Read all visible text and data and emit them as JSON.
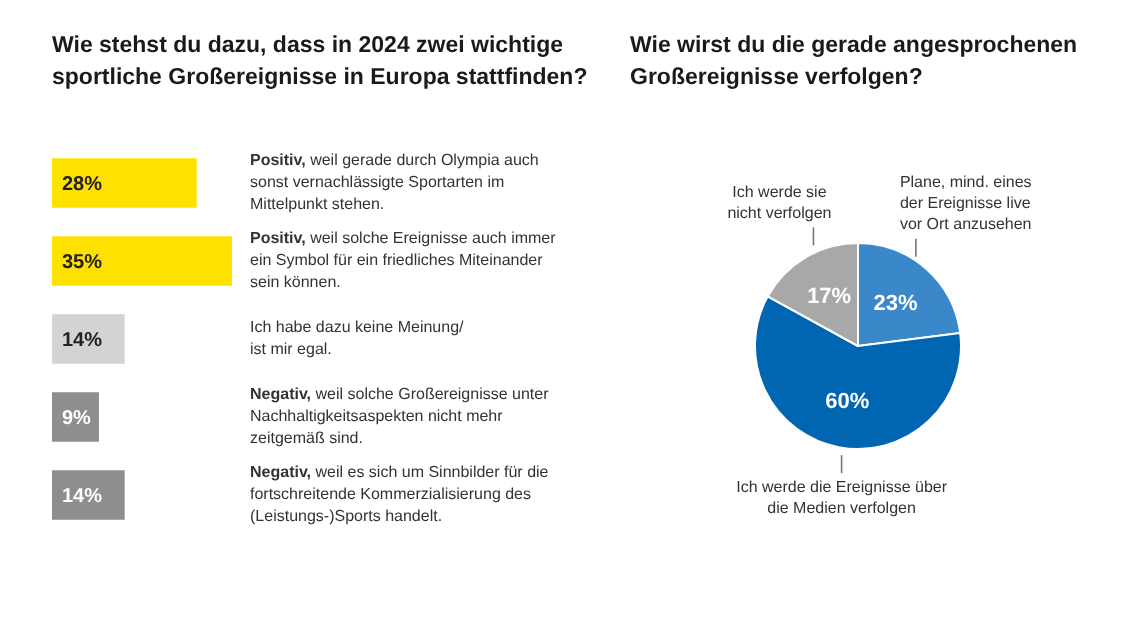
{
  "chart_data": [
    {
      "type": "bar",
      "orientation": "horizontal",
      "title": "Wie stehst du dazu, dass in 2024 zwei wichtige sportliche Großereignisse in Europa stattfinden?",
      "categories": [
        "Positiv, weil gerade durch Olympia auch\nsonst vernachlässigte Sportarten im\nMittelpunkt stehen.",
        "Positiv, weil solche Ereignisse auch immer\nein Symbol für ein friedliches Miteinander\nsein können.",
        "Ich habe dazu keine Meinung/\nist mir egal.",
        "Negativ, weil solche Großereignisse unter\nNachhaltigkeitsaspekten nicht mehr\nzeitgemäß sind.",
        "Negativ, weil es sich um Sinnbilder für die\nfortschreitende Kommerzialisierung des\n(Leistungs-)Sports handelt."
      ],
      "values": [
        28,
        35,
        14,
        9,
        14
      ],
      "colors": [
        "#ffe100",
        "#ffe100",
        "#d3d3d3",
        "#8e8e8e",
        "#8e8e8e"
      ],
      "value_labels": [
        "28%",
        "35%",
        "14%",
        "9%",
        "14%"
      ],
      "legend": false
    },
    {
      "type": "pie",
      "title": "Wie wirst du die gerade angesprochenen Großereignisse verfolgen?",
      "categories": [
        "Plane, mind. eines\nder Ereignisse live\nvor Ort anzusehen",
        "Ich werde die Ereignisse über\ndie Medien verfolgen",
        "Ich werde sie\nnicht verfolgen"
      ],
      "values": [
        23,
        60,
        17
      ],
      "colors": [
        "#3a88c9",
        "#0066b2",
        "#a8a8a8"
      ],
      "value_labels": [
        "23%",
        "60%",
        "17%"
      ],
      "legend": false
    }
  ]
}
